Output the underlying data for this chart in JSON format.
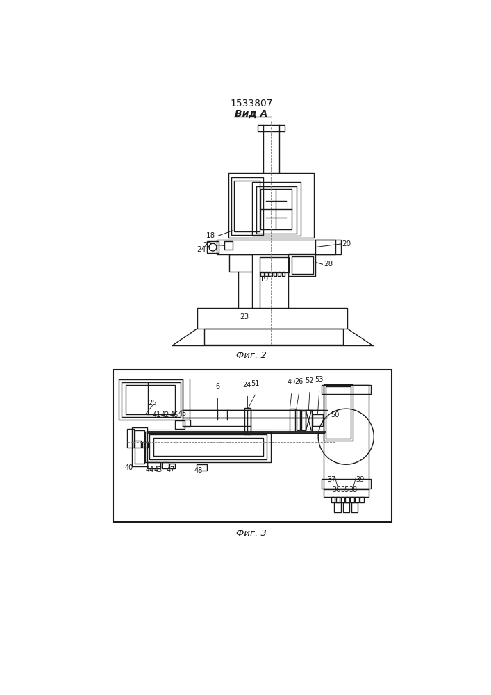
{
  "title": "1533807",
  "subtitle": "Вид A",
  "fig2_label": "Фиг. 2",
  "fig3_label": "Фиг. 3",
  "bg_color": "#ffffff",
  "line_color": "#1a1a1a",
  "line_width": 1.0
}
